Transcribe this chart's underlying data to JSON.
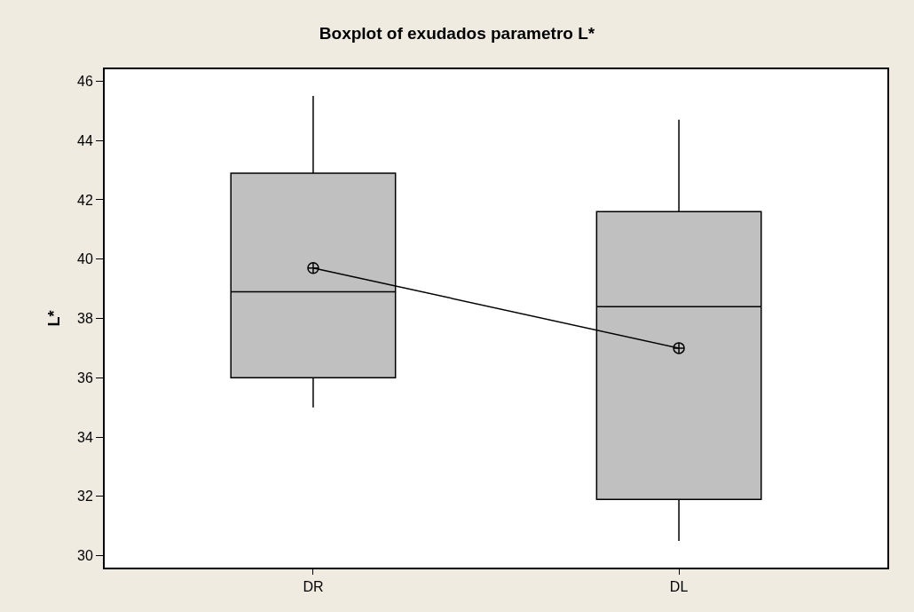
{
  "chart_data": {
    "type": "box",
    "title": "Boxplot of exudados parametro L*",
    "ylabel": "L*",
    "categories": [
      "DR",
      "DL"
    ],
    "series": [
      {
        "color": "#c0c0c0",
        "boxes": [
          {
            "low": 35.0,
            "q1": 36.0,
            "median": 38.9,
            "q3": 42.9,
            "high": 45.5,
            "mean": 39.7
          },
          {
            "low": 30.5,
            "q1": 31.9,
            "median": 38.4,
            "q3": 41.6,
            "high": 44.7,
            "mean": 37.0
          }
        ]
      },
      {
        "type": "line",
        "x": [
          "DR",
          "DL"
        ],
        "values": [
          39.7,
          37.0
        ],
        "color": "#000000"
      }
    ],
    "ylim": [
      29.6,
      46.4
    ],
    "yticks": [
      30,
      32,
      34,
      36,
      38,
      40,
      42,
      44,
      46
    ]
  }
}
